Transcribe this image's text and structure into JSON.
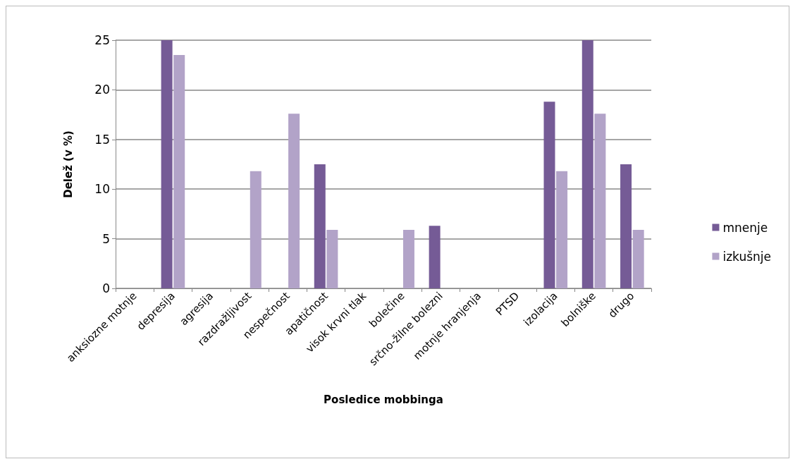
{
  "chart_data": {
    "type": "bar",
    "xlabel": "Posledice mobbinga",
    "ylabel": "Delež (v %)",
    "categories": [
      "anksiozne motnje",
      "depresija",
      "agresija",
      "razdražljivost",
      "nespečnost",
      "apatičnost",
      "visok krvni tlak",
      "bolečine",
      "srčno-žilne bolezni",
      "motnje hranjenja",
      "PTSD",
      "izolacija",
      "bolniške",
      "drugo"
    ],
    "series": [
      {
        "name": "mnenje",
        "color": "#755b96",
        "values": [
          0,
          25,
          0,
          0,
          0,
          12.5,
          0,
          0,
          6.3,
          0,
          0,
          18.8,
          25,
          12.5
        ]
      },
      {
        "name": "izkušnje",
        "color": "#b2a3c8",
        "values": [
          0,
          23.5,
          0,
          11.8,
          17.6,
          5.9,
          0,
          5.9,
          0,
          0,
          0,
          11.8,
          17.6,
          5.9
        ]
      }
    ],
    "ylim": [
      0,
      25
    ],
    "yticks": [
      0,
      5,
      10,
      15,
      20,
      25
    ],
    "grid": "y",
    "legend": "right"
  }
}
